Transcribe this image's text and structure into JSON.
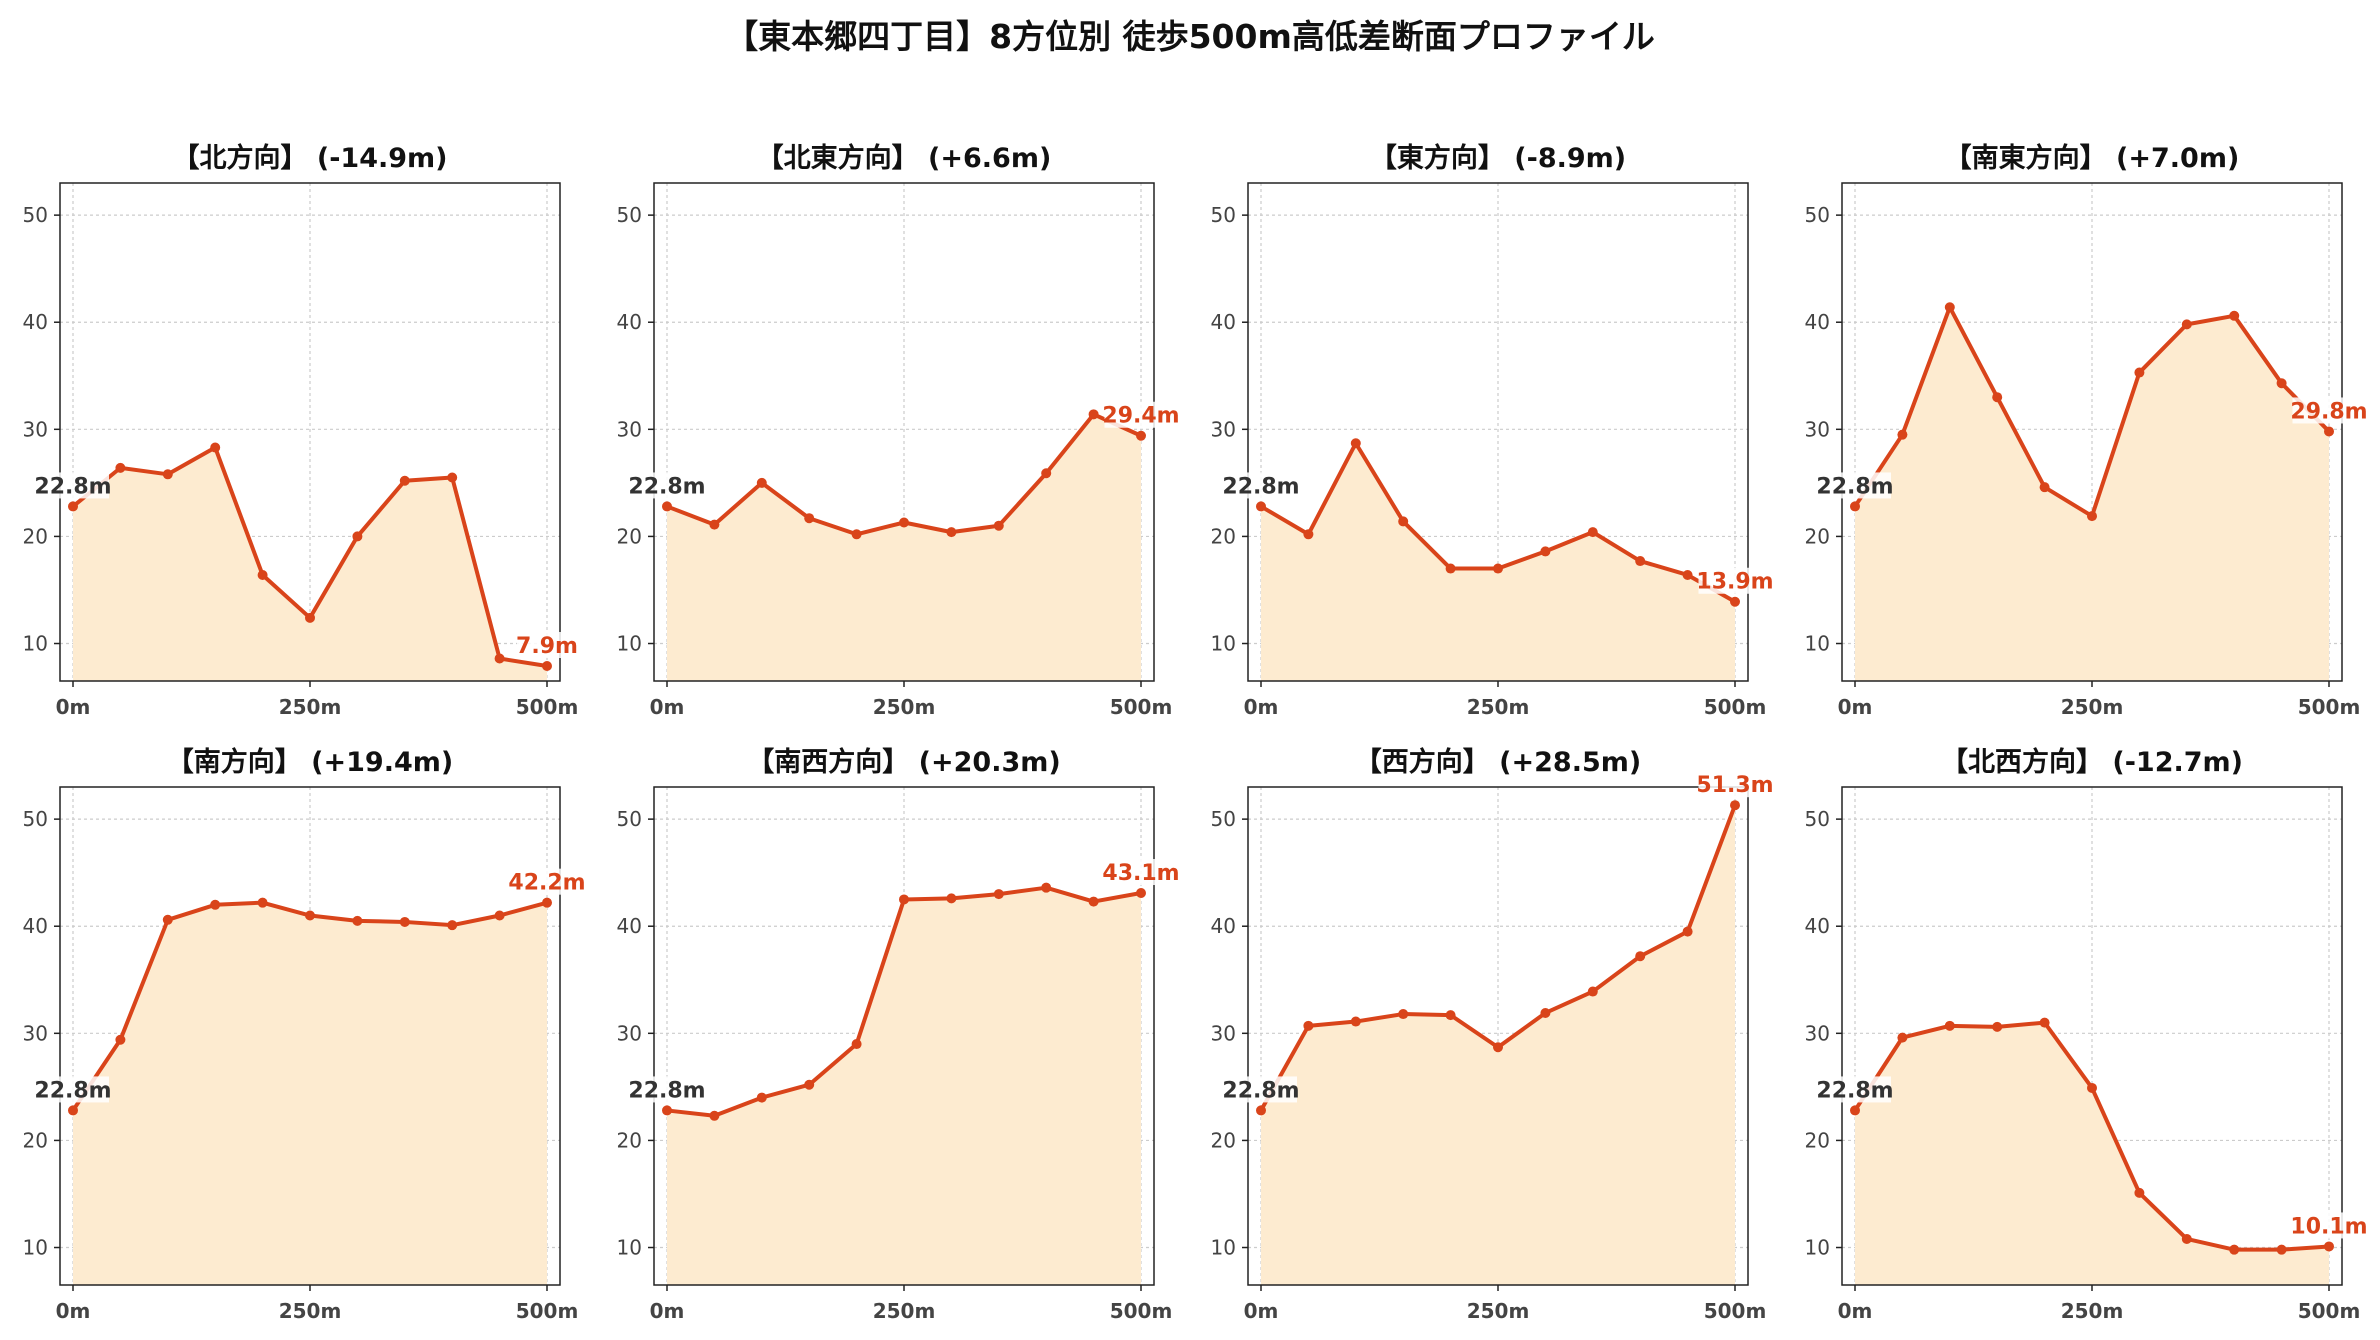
{
  "figure_title": "【東本郷四丁目】8方位別 徒歩500m高低差断面プロファイル",
  "colors": {
    "line": "#d9441a",
    "fill": "#fdebd0",
    "grid": "#cccccc",
    "frame": "#222222",
    "start_label": "#333333"
  },
  "chart_data": [
    {
      "type": "area",
      "title": "【北方向】 (-14.9m)",
      "x": [
        0,
        50,
        100,
        150,
        200,
        250,
        300,
        350,
        400,
        450,
        500
      ],
      "values": [
        22.8,
        26.4,
        25.8,
        28.3,
        16.4,
        12.4,
        20.0,
        25.2,
        25.5,
        8.6,
        7.9
      ],
      "xticks": [
        "0m",
        "250m",
        "500m"
      ],
      "xtick_values": [
        0,
        250,
        500
      ],
      "yticks": [
        10,
        20,
        30,
        40,
        50
      ],
      "ylim": [
        6.5,
        53
      ],
      "start_label": "22.8m",
      "end_label": "7.9m",
      "grid": true
    },
    {
      "type": "area",
      "title": "【北東方向】 (+6.6m)",
      "x": [
        0,
        50,
        100,
        150,
        200,
        250,
        300,
        350,
        400,
        450,
        500
      ],
      "values": [
        22.8,
        21.1,
        25.0,
        21.7,
        20.2,
        21.3,
        20.4,
        21.0,
        25.9,
        31.4,
        29.4
      ],
      "xticks": [
        "0m",
        "250m",
        "500m"
      ],
      "xtick_values": [
        0,
        250,
        500
      ],
      "yticks": [
        10,
        20,
        30,
        40,
        50
      ],
      "ylim": [
        6.5,
        53
      ],
      "start_label": "22.8m",
      "end_label": "29.4m",
      "grid": true
    },
    {
      "type": "area",
      "title": "【東方向】 (-8.9m)",
      "x": [
        0,
        50,
        100,
        150,
        200,
        250,
        300,
        350,
        400,
        450,
        500
      ],
      "values": [
        22.8,
        20.2,
        28.7,
        21.4,
        17.0,
        17.0,
        18.6,
        20.4,
        17.7,
        16.4,
        13.9
      ],
      "xticks": [
        "0m",
        "250m",
        "500m"
      ],
      "xtick_values": [
        0,
        250,
        500
      ],
      "yticks": [
        10,
        20,
        30,
        40,
        50
      ],
      "ylim": [
        6.5,
        53
      ],
      "start_label": "22.8m",
      "end_label": "13.9m",
      "grid": true
    },
    {
      "type": "area",
      "title": "【南東方向】 (+7.0m)",
      "x": [
        0,
        50,
        100,
        150,
        200,
        250,
        300,
        350,
        400,
        450,
        500
      ],
      "values": [
        22.8,
        29.5,
        41.4,
        33.0,
        24.6,
        21.9,
        35.3,
        39.8,
        40.6,
        34.3,
        29.8
      ],
      "xticks": [
        "0m",
        "250m",
        "500m"
      ],
      "xtick_values": [
        0,
        250,
        500
      ],
      "yticks": [
        10,
        20,
        30,
        40,
        50
      ],
      "ylim": [
        6.5,
        53
      ],
      "start_label": "22.8m",
      "end_label": "29.8m",
      "grid": true
    },
    {
      "type": "area",
      "title": "【南方向】 (+19.4m)",
      "x": [
        0,
        50,
        100,
        150,
        200,
        250,
        300,
        350,
        400,
        450,
        500
      ],
      "values": [
        22.8,
        29.4,
        40.6,
        42.0,
        42.2,
        41.0,
        40.5,
        40.4,
        40.1,
        41.0,
        42.2
      ],
      "xticks": [
        "0m",
        "250m",
        "500m"
      ],
      "xtick_values": [
        0,
        250,
        500
      ],
      "yticks": [
        10,
        20,
        30,
        40,
        50
      ],
      "ylim": [
        6.5,
        53
      ],
      "start_label": "22.8m",
      "end_label": "42.2m",
      "grid": true
    },
    {
      "type": "area",
      "title": "【南西方向】 (+20.3m)",
      "x": [
        0,
        50,
        100,
        150,
        200,
        250,
        300,
        350,
        400,
        450,
        500
      ],
      "values": [
        22.8,
        22.3,
        24.0,
        25.2,
        29.0,
        42.5,
        42.6,
        43.0,
        43.6,
        42.3,
        43.1
      ],
      "xticks": [
        "0m",
        "250m",
        "500m"
      ],
      "xtick_values": [
        0,
        250,
        500
      ],
      "yticks": [
        10,
        20,
        30,
        40,
        50
      ],
      "ylim": [
        6.5,
        53
      ],
      "start_label": "22.8m",
      "end_label": "43.1m",
      "grid": true
    },
    {
      "type": "area",
      "title": "【西方向】 (+28.5m)",
      "x": [
        0,
        50,
        100,
        150,
        200,
        250,
        300,
        350,
        400,
        450,
        500
      ],
      "values": [
        22.8,
        30.7,
        31.1,
        31.8,
        31.7,
        28.7,
        31.9,
        33.9,
        37.2,
        39.5,
        51.3
      ],
      "xticks": [
        "0m",
        "250m",
        "500m"
      ],
      "xtick_values": [
        0,
        250,
        500
      ],
      "yticks": [
        10,
        20,
        30,
        40,
        50
      ],
      "ylim": [
        6.5,
        53
      ],
      "start_label": "22.8m",
      "end_label": "51.3m",
      "grid": true
    },
    {
      "type": "area",
      "title": "【北西方向】 (-12.7m)",
      "x": [
        0,
        50,
        100,
        150,
        200,
        250,
        300,
        350,
        400,
        450,
        500
      ],
      "values": [
        22.8,
        29.6,
        30.7,
        30.6,
        31.0,
        24.9,
        15.1,
        10.8,
        9.8,
        9.8,
        10.1
      ],
      "xticks": [
        "0m",
        "250m",
        "500m"
      ],
      "xtick_values": [
        0,
        250,
        500
      ],
      "yticks": [
        10,
        20,
        30,
        40,
        50
      ],
      "ylim": [
        6.5,
        53
      ],
      "start_label": "22.8m",
      "end_label": "10.1m",
      "grid": true
    }
  ]
}
